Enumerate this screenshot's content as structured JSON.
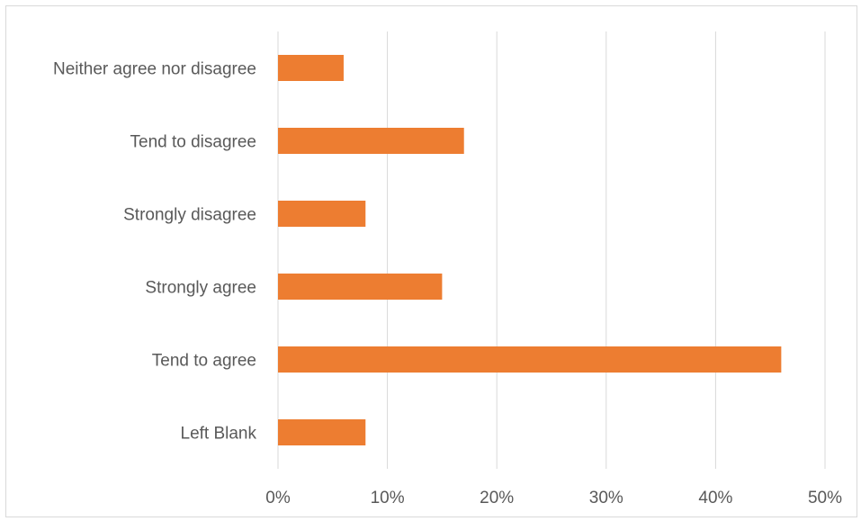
{
  "chart_data": {
    "type": "bar",
    "orientation": "horizontal",
    "title": "",
    "xlabel": "",
    "ylabel": "",
    "categories": [
      "Neither agree nor disagree",
      "Tend to disagree",
      "Strongly disagree",
      "Strongly agree",
      "Tend to agree",
      "Left Blank"
    ],
    "values": [
      0.06,
      0.17,
      0.08,
      0.15,
      0.46,
      0.08
    ],
    "xlim": [
      0,
      0.5
    ],
    "ticks": [
      0,
      0.1,
      0.2,
      0.3,
      0.4,
      0.5
    ],
    "tick_labels": [
      "0%",
      "10%",
      "20%",
      "30%",
      "40%",
      "50%"
    ],
    "grid": "vertical",
    "legend": "none",
    "bar_color": "#ED7D31",
    "gridline_color": "#D9D9D9",
    "label_color": "#595959"
  }
}
